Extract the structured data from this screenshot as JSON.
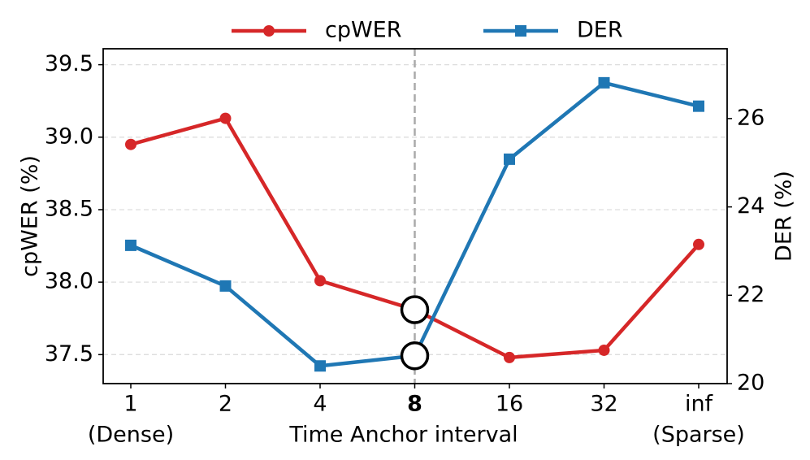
{
  "chart_data": {
    "type": "line",
    "xlabel": "Time Anchor interval",
    "ylabel": "cpWER (%)",
    "y2label": "DER (%)",
    "categories": [
      "1",
      "2",
      "4",
      "8",
      "16",
      "32",
      "inf"
    ],
    "category_notes": [
      [
        "0",
        "(Dense)"
      ],
      [
        "6",
        "(Sparse)"
      ]
    ],
    "highlight_index": 3,
    "series": [
      {
        "name": "cpWER",
        "color": "#d62728",
        "marker": "circle",
        "values": [
          38.95,
          39.13,
          38.01,
          37.81,
          37.48,
          37.53,
          38.26
        ]
      },
      {
        "name": "DER",
        "color": "#1f77b4",
        "marker": "square",
        "axis": "y2",
        "values": [
          23.13,
          22.21,
          20.4,
          20.63,
          25.08,
          26.81,
          26.28
        ]
      }
    ],
    "ylim": [
      37.3,
      39.61
    ],
    "yticks": [
      37.5,
      {
        "value": 38,
        "label": "38.0"
      },
      38.5,
      {
        "value": 39,
        "label": "39.0"
      },
      39.5
    ],
    "y2lim": [
      20,
      27.58
    ],
    "y2ticks": [
      20,
      22,
      24,
      26
    ],
    "grid": true,
    "legend": "top"
  }
}
